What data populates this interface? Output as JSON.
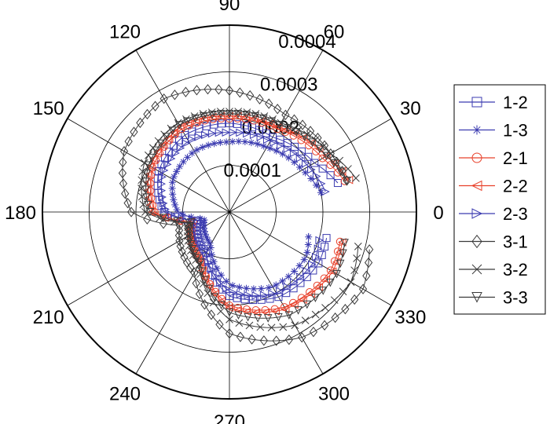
{
  "chart_data": {
    "type": "polar-line",
    "title": "",
    "radial_axis": {
      "range": [
        0,
        0.0004
      ],
      "ticks": [
        0.0001,
        0.0002,
        0.0003,
        0.0004
      ],
      "tick_labels": [
        "0.0001",
        "0.0002",
        "0.0003",
        "0.0004"
      ],
      "label_angle_deg": 67
    },
    "angular_axis": {
      "unit": "degrees",
      "ticks": [
        0,
        30,
        60,
        90,
        120,
        150,
        180,
        210,
        240,
        270,
        300,
        330
      ],
      "tick_labels": [
        "0",
        "30",
        "60",
        "90",
        "120",
        "150",
        "180",
        "210",
        "240",
        "270",
        "300",
        "330"
      ]
    },
    "grid": true,
    "legend_position": "right",
    "series": [
      {
        "name": "1-2",
        "color": "#3b3bb0",
        "marker": "square",
        "points": [
          [
            15,
            0.00024
          ],
          [
            30,
            0.00021
          ],
          [
            60,
            0.000185
          ],
          [
            90,
            0.00019
          ],
          [
            120,
            0.00019
          ],
          [
            150,
            0.000175
          ],
          [
            180,
            0.00014
          ],
          [
            195,
            7e-05
          ],
          [
            240,
            0.0001
          ],
          [
            270,
            0.00018
          ],
          [
            300,
            0.00021
          ],
          [
            330,
            0.00022
          ],
          [
            345,
            0.000215
          ]
        ]
      },
      {
        "name": "1-3",
        "color": "#3b3bb0",
        "marker": "asterisk",
        "points": [
          [
            12,
            0.0002
          ],
          [
            30,
            0.00018
          ],
          [
            60,
            0.00016
          ],
          [
            90,
            0.00015
          ],
          [
            120,
            0.00015
          ],
          [
            150,
            0.00014
          ],
          [
            180,
            0.00011
          ],
          [
            195,
            5.5e-05
          ],
          [
            240,
            8e-05
          ],
          [
            270,
            0.000155
          ],
          [
            300,
            0.000185
          ],
          [
            330,
            0.00019
          ],
          [
            345,
            0.000175
          ]
        ]
      },
      {
        "name": "2-1",
        "color": "#e8402a",
        "marker": "circle",
        "points": [
          [
            15,
            0.000255
          ],
          [
            30,
            0.00023
          ],
          [
            60,
            0.000205
          ],
          [
            90,
            0.0002
          ],
          [
            120,
            0.000205
          ],
          [
            150,
            0.00019
          ],
          [
            180,
            0.00016
          ],
          [
            195,
            8e-05
          ],
          [
            240,
            0.00012
          ],
          [
            270,
            0.0002
          ],
          [
            300,
            0.000235
          ],
          [
            330,
            0.00025
          ],
          [
            345,
            0.000245
          ]
        ]
      },
      {
        "name": "2-2",
        "color": "#e8402a",
        "marker": "triangle-left",
        "points": [
          [
            15,
            0.000265
          ],
          [
            30,
            0.00024
          ],
          [
            60,
            0.00021
          ],
          [
            90,
            0.000205
          ],
          [
            120,
            0.00021
          ],
          [
            150,
            0.000195
          ],
          [
            180,
            0.000165
          ],
          [
            195,
            8.5e-05
          ],
          [
            240,
            0.000125
          ],
          [
            270,
            0.000205
          ],
          [
            300,
            0.00024
          ],
          [
            330,
            0.000255
          ],
          [
            345,
            0.00025
          ]
        ]
      },
      {
        "name": "2-3",
        "color": "#3b3bb0",
        "marker": "triangle-right",
        "points": [
          [
            12,
            0.00021
          ],
          [
            30,
            0.000195
          ],
          [
            60,
            0.000175
          ],
          [
            90,
            0.00017
          ],
          [
            120,
            0.000175
          ],
          [
            150,
            0.000165
          ],
          [
            180,
            0.000135
          ],
          [
            195,
            7e-05
          ],
          [
            240,
            0.0001
          ],
          [
            270,
            0.00017
          ],
          [
            300,
            0.0002
          ],
          [
            330,
            0.00021
          ],
          [
            345,
            0.0002
          ]
        ]
      },
      {
        "name": "3-1",
        "color": "#3a3a3a",
        "marker": "diamond",
        "points": [
          [
            15,
            0.00026
          ],
          [
            30,
            0.00025
          ],
          [
            60,
            0.00024
          ],
          [
            90,
            0.00026
          ],
          [
            120,
            0.00028
          ],
          [
            150,
            0.00026
          ],
          [
            180,
            0.00021
          ],
          [
            195,
            0.00011
          ],
          [
            240,
            0.00015
          ],
          [
            270,
            0.00026
          ],
          [
            300,
            0.00031
          ],
          [
            330,
            0.00033
          ],
          [
            345,
            0.00031
          ]
        ]
      },
      {
        "name": "3-2",
        "color": "#3a3a3a",
        "marker": "x",
        "points": [
          [
            15,
            0.00028
          ],
          [
            30,
            0.00025
          ],
          [
            60,
            0.00022
          ],
          [
            90,
            0.000215
          ],
          [
            120,
            0.00022
          ],
          [
            150,
            0.00021
          ],
          [
            180,
            0.00018
          ],
          [
            195,
            9e-05
          ],
          [
            240,
            0.00013
          ],
          [
            270,
            0.00023
          ],
          [
            300,
            0.00028
          ],
          [
            330,
            0.0003
          ],
          [
            345,
            0.000285
          ]
        ]
      },
      {
        "name": "3-3",
        "color": "#3a3a3a",
        "marker": "triangle-down",
        "points": [
          [
            15,
            0.00026
          ],
          [
            30,
            0.00024
          ],
          [
            60,
            0.000215
          ],
          [
            90,
            0.00021
          ],
          [
            120,
            0.000215
          ],
          [
            150,
            0.0002
          ],
          [
            180,
            0.00017
          ],
          [
            195,
            8.5e-05
          ],
          [
            240,
            0.000125
          ],
          [
            270,
            0.000215
          ],
          [
            300,
            0.000255
          ],
          [
            330,
            0.000265
          ],
          [
            345,
            0.000255
          ]
        ]
      }
    ]
  }
}
